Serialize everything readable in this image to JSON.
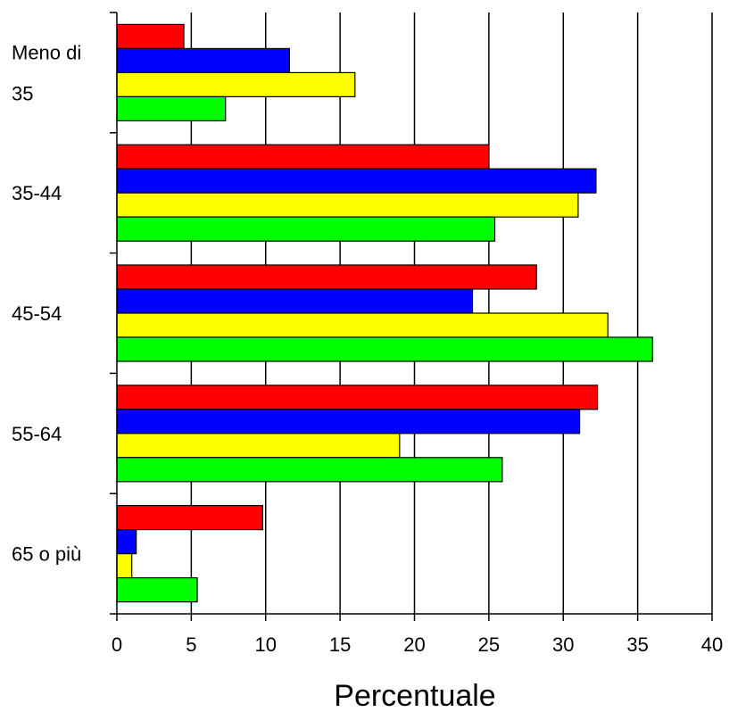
{
  "chart_data": {
    "type": "bar",
    "orientation": "horizontal",
    "categories": [
      "Meno di 35",
      "35-44",
      "45-54",
      "55-64",
      "65 o più"
    ],
    "category_label_lines": [
      [
        "Meno di",
        "35"
      ],
      [
        "35-44"
      ],
      [
        "45-54"
      ],
      [
        "55-64"
      ],
      [
        "65 o più"
      ]
    ],
    "series": [
      {
        "color": "#ff0000",
        "values": [
          4.5,
          25.0,
          28.2,
          32.3,
          9.8
        ]
      },
      {
        "color": "#0000ff",
        "values": [
          11.6,
          32.2,
          23.9,
          31.1,
          1.3
        ]
      },
      {
        "color": "#ffff00",
        "values": [
          16.0,
          31.0,
          33.0,
          19.0,
          1.0
        ]
      },
      {
        "color": "#00ff00",
        "values": [
          7.3,
          25.4,
          36.0,
          25.9,
          5.4
        ]
      }
    ],
    "xlabel": "Percentuale",
    "ylabel": "",
    "xlim": [
      0,
      40
    ],
    "xticks": [
      "0",
      "5",
      "10",
      "15",
      "20",
      "25",
      "30",
      "35",
      "40"
    ],
    "grid": "vertical"
  }
}
